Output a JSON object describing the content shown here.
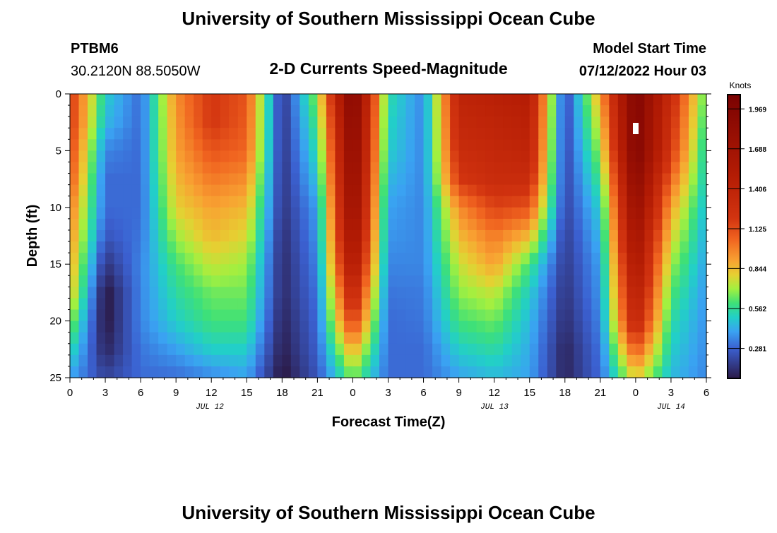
{
  "header": {
    "title": "University of Southern Mississippi Ocean Cube",
    "station": "PTBM6",
    "coords": "30.2120N  88.5050W",
    "subtitle": "2-D Currents Speed-Magnitude",
    "model_label": "Model Start Time",
    "model_time": "07/12/2022 Hour 03"
  },
  "footer": {
    "title": "University of Southern Mississippi Ocean Cube"
  },
  "chart_data": {
    "type": "heatmap",
    "title": "2-D Currents Speed-Magnitude",
    "xlabel": "Forecast Time(Z)",
    "ylabel": "Depth (ft)",
    "x_hours": [
      0,
      3,
      6,
      9,
      12,
      15,
      18,
      21,
      24,
      27,
      30,
      33,
      36,
      39,
      42,
      45,
      48,
      51,
      54
    ],
    "x_tick_labels": [
      "0",
      "3",
      "6",
      "9",
      "12",
      "15",
      "18",
      "21",
      "0",
      "3",
      "6",
      "9",
      "12",
      "15",
      "18",
      "21",
      "0",
      "3",
      "6"
    ],
    "date_labels": [
      {
        "label": "JUL 12",
        "hour": 12
      },
      {
        "label": "JUL 13",
        "hour": 36
      },
      {
        "label": "JUL 14",
        "hour": 51
      }
    ],
    "depths": [
      0,
      2.5,
      5,
      7.5,
      10,
      12.5,
      15,
      17.5,
      20,
      22.5,
      25
    ],
    "y_ticks": [
      "0",
      "5",
      "10",
      "15",
      "20",
      "25"
    ],
    "ylim": [
      0,
      25
    ],
    "xlim": [
      0,
      54
    ],
    "values_by_time": [
      [
        1.2,
        1.2,
        1.15,
        1.1,
        1.0,
        0.95,
        0.9,
        0.85,
        0.7,
        0.55,
        0.4
      ],
      [
        0.5,
        0.45,
        0.35,
        0.3,
        0.3,
        0.25,
        0.15,
        0.05,
        0.05,
        0.1,
        0.2
      ],
      [
        0.3,
        0.3,
        0.3,
        0.3,
        0.3,
        0.32,
        0.35,
        0.35,
        0.35,
        0.32,
        0.3
      ],
      [
        0.95,
        0.92,
        0.9,
        0.85,
        0.8,
        0.7,
        0.6,
        0.55,
        0.5,
        0.4,
        0.3
      ],
      [
        1.2,
        1.2,
        1.1,
        1.0,
        0.9,
        0.85,
        0.75,
        0.65,
        0.6,
        0.5,
        0.35
      ],
      [
        1.1,
        1.08,
        1.05,
        0.95,
        0.85,
        0.78,
        0.7,
        0.65,
        0.6,
        0.5,
        0.4
      ],
      [
        0.15,
        0.15,
        0.15,
        0.15,
        0.15,
        0.13,
        0.12,
        0.12,
        0.1,
        0.08,
        0.05
      ],
      [
        0.7,
        0.62,
        0.55,
        0.48,
        0.4,
        0.38,
        0.35,
        0.32,
        0.3,
        0.28,
        0.25
      ],
      [
        2.0,
        1.95,
        1.9,
        1.85,
        1.8,
        1.7,
        1.6,
        1.4,
        1.2,
        0.9,
        0.65
      ],
      [
        0.55,
        0.52,
        0.5,
        0.45,
        0.4,
        0.38,
        0.35,
        0.32,
        0.3,
        0.3,
        0.3
      ],
      [
        0.35,
        0.35,
        0.35,
        0.35,
        0.35,
        0.35,
        0.35,
        0.33,
        0.32,
        0.3,
        0.3
      ],
      [
        1.4,
        1.35,
        1.3,
        1.2,
        0.95,
        0.85,
        0.75,
        0.68,
        0.6,
        0.5,
        0.4
      ],
      [
        1.45,
        1.4,
        1.35,
        1.3,
        1.15,
        1.0,
        0.9,
        0.75,
        0.65,
        0.55,
        0.45
      ],
      [
        1.5,
        1.45,
        1.4,
        1.3,
        1.1,
        0.85,
        0.6,
        0.5,
        0.45,
        0.42,
        0.4
      ],
      [
        0.2,
        0.2,
        0.2,
        0.2,
        0.2,
        0.18,
        0.17,
        0.15,
        0.13,
        0.1,
        0.1
      ],
      [
        0.9,
        0.8,
        0.7,
        0.6,
        0.5,
        0.45,
        0.4,
        0.38,
        0.35,
        0.32,
        0.3
      ],
      [
        2.0,
        2.0,
        2.0,
        1.9,
        1.8,
        1.7,
        1.6,
        1.5,
        1.4,
        1.1,
        0.8
      ],
      [
        1.3,
        1.25,
        1.2,
        1.05,
        0.9,
        0.8,
        0.7,
        0.62,
        0.55,
        0.5,
        0.45
      ],
      [
        0.6,
        0.55,
        0.5,
        0.48,
        0.45,
        0.42,
        0.4,
        0.38,
        0.37,
        0.36,
        0.35
      ]
    ],
    "colorbar": {
      "label": "Knots",
      "ticks": [
        "1.969",
        "1.688",
        "1.406",
        "1.125",
        "0.844",
        "0.562",
        "0.281"
      ],
      "range": [
        0.07,
        2.07
      ],
      "stops": [
        [
          0.07,
          "#2b1a48"
        ],
        [
          0.281,
          "#3b60d0"
        ],
        [
          0.4,
          "#3aa2f2"
        ],
        [
          0.5,
          "#22cfc8"
        ],
        [
          0.6,
          "#3ee078"
        ],
        [
          0.7,
          "#a2f040"
        ],
        [
          0.8,
          "#e6d032"
        ],
        [
          0.9,
          "#f8a232"
        ],
        [
          1.05,
          "#f06420"
        ],
        [
          1.2,
          "#d23410"
        ],
        [
          1.5,
          "#b41c04"
        ],
        [
          2.07,
          "#7a0202"
        ]
      ]
    }
  }
}
